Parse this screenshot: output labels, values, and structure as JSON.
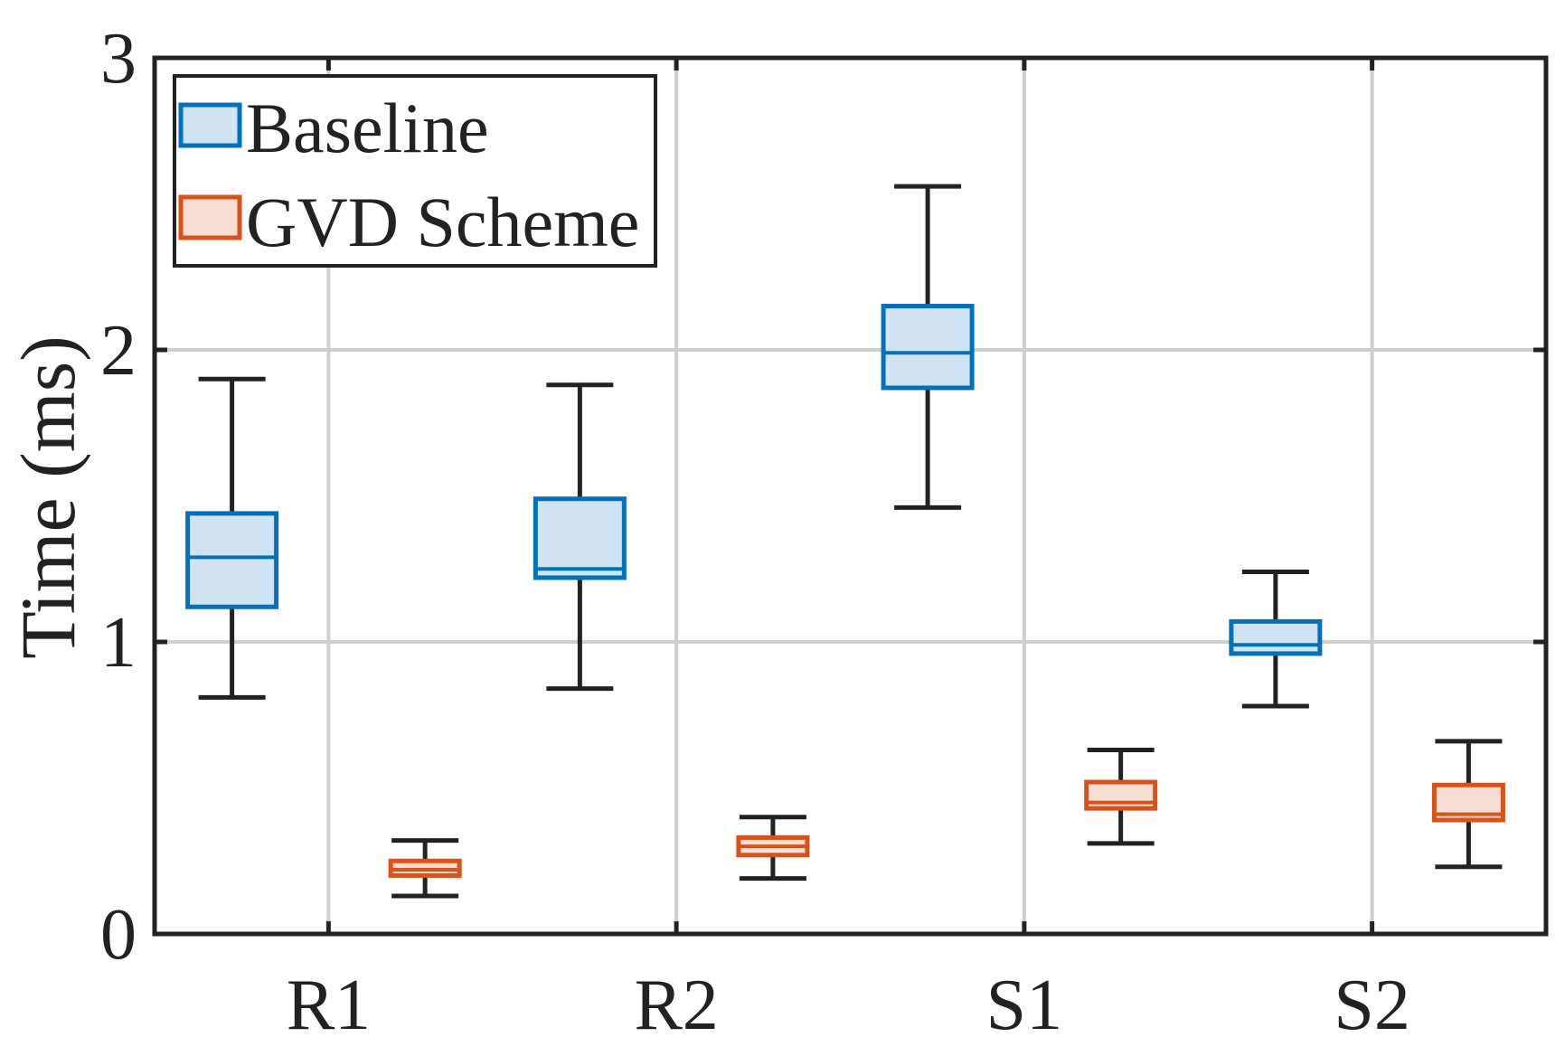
{
  "chart_data": {
    "type": "box",
    "title": "",
    "xlabel": "",
    "ylabel": "Time (ms)",
    "ylim": [
      0,
      3
    ],
    "yticks": [
      "0",
      "1",
      "2",
      "3"
    ],
    "categories": [
      "R1",
      "R2",
      "S1",
      "S2"
    ],
    "grid": true,
    "legend_position": "top-left",
    "series": [
      {
        "name": "Baseline",
        "color": "#0072BD",
        "fill": "#cfe3f2",
        "boxes": [
          {
            "category": "R1",
            "whisker_low": 0.81,
            "q1": 1.12,
            "median": 1.29,
            "q3": 1.44,
            "whisker_high": 1.9
          },
          {
            "category": "R2",
            "whisker_low": 0.84,
            "q1": 1.22,
            "median": 1.25,
            "q3": 1.49,
            "whisker_high": 1.88
          },
          {
            "category": "S1",
            "whisker_low": 1.46,
            "q1": 1.87,
            "median": 1.99,
            "q3": 2.15,
            "whisker_high": 2.56
          },
          {
            "category": "S2",
            "whisker_low": 0.78,
            "q1": 0.96,
            "median": 0.99,
            "q3": 1.07,
            "whisker_high": 1.24
          }
        ]
      },
      {
        "name": "GVD Scheme",
        "color": "#D95319",
        "fill": "#f7ddd2",
        "boxes": [
          {
            "category": "R1",
            "whisker_low": 0.13,
            "q1": 0.2,
            "median": 0.22,
            "q3": 0.25,
            "whisker_high": 0.32
          },
          {
            "category": "R2",
            "whisker_low": 0.19,
            "q1": 0.27,
            "median": 0.3,
            "q3": 0.33,
            "whisker_high": 0.4
          },
          {
            "category": "S1",
            "whisker_low": 0.31,
            "q1": 0.43,
            "median": 0.45,
            "q3": 0.52,
            "whisker_high": 0.63
          },
          {
            "category": "S2",
            "whisker_low": 0.23,
            "q1": 0.39,
            "median": 0.41,
            "q3": 0.51,
            "whisker_high": 0.66
          }
        ]
      }
    ]
  }
}
